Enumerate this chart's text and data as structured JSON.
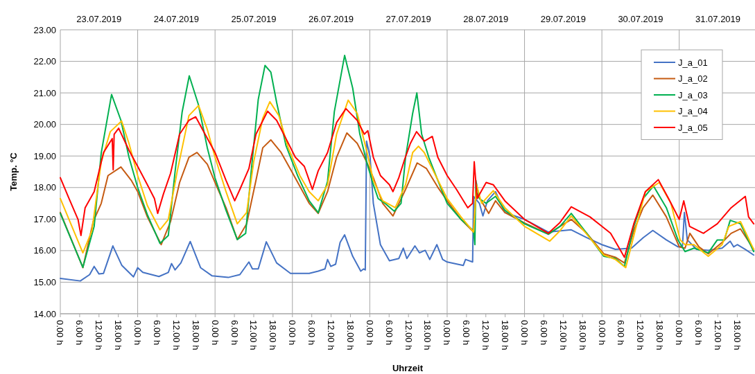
{
  "chart_data": {
    "type": "line",
    "xlabel": "Uhrzeit",
    "ylabel": "Temp. °C",
    "legend": "top right",
    "grid": "y",
    "line_style": "solid",
    "marker": "none",
    "xlim": [
      "2019-07-23T00:00",
      "2019-07-31T23:30"
    ],
    "ylim": [
      14,
      23
    ],
    "yticks": [
      {
        "value": 14,
        "label": "14.00"
      },
      {
        "value": 15,
        "label": "15.00"
      },
      {
        "value": 16,
        "label": "16.00"
      },
      {
        "value": 17,
        "label": "17.00"
      },
      {
        "value": 18,
        "label": "18.00"
      },
      {
        "value": 19,
        "label": "19.00"
      },
      {
        "value": 20,
        "label": "20.00"
      },
      {
        "value": 21,
        "label": "21.00"
      },
      {
        "value": 22,
        "label": "22.00"
      },
      {
        "value": 23,
        "label": "23.00"
      }
    ],
    "xticks": [
      {
        "value": "2019-07-23T00:00",
        "label": "0.00 h"
      },
      {
        "value": "2019-07-23T06:00",
        "label": "6.00 h"
      },
      {
        "value": "2019-07-23T12:00",
        "label": "12.00 h"
      },
      {
        "value": "2019-07-23T18:00",
        "label": "18.00 h"
      },
      {
        "value": "2019-07-24T00:00",
        "label": "0.00 h"
      },
      {
        "value": "2019-07-24T06:00",
        "label": "6.00 h"
      },
      {
        "value": "2019-07-24T12:00",
        "label": "12.00 h"
      },
      {
        "value": "2019-07-24T18:00",
        "label": "18.00 h"
      },
      {
        "value": "2019-07-25T00:00",
        "label": "0.00 h"
      },
      {
        "value": "2019-07-25T06:00",
        "label": "6.00 h"
      },
      {
        "value": "2019-07-25T12:00",
        "label": "12.00 h"
      },
      {
        "value": "2019-07-25T18:00",
        "label": "18.00 h"
      },
      {
        "value": "2019-07-26T00:00",
        "label": "0.00 h"
      },
      {
        "value": "2019-07-26T06:00",
        "label": "6.00 h"
      },
      {
        "value": "2019-07-26T12:00",
        "label": "12.00 h"
      },
      {
        "value": "2019-07-26T18:00",
        "label": "18.00 h"
      },
      {
        "value": "2019-07-27T00:00",
        "label": "0.00 h"
      },
      {
        "value": "2019-07-27T06:00",
        "label": "6.00 h"
      },
      {
        "value": "2019-07-27T12:00",
        "label": "12.00 h"
      },
      {
        "value": "2019-07-27T18:00",
        "label": "18.00 h"
      },
      {
        "value": "2019-07-28T00:00",
        "label": "0.00 h"
      },
      {
        "value": "2019-07-28T06:00",
        "label": "6.00 h"
      },
      {
        "value": "2019-07-28T12:00",
        "label": "12.00 h"
      },
      {
        "value": "2019-07-28T18:00",
        "label": "18.00 h"
      },
      {
        "value": "2019-07-29T00:00",
        "label": "0.00 h"
      },
      {
        "value": "2019-07-29T06:00",
        "label": "6.00 h"
      },
      {
        "value": "2019-07-29T12:00",
        "label": "12.00 h"
      },
      {
        "value": "2019-07-29T18:00",
        "label": "18.00 h"
      },
      {
        "value": "2019-07-30T00:00",
        "label": "0.00 h"
      },
      {
        "value": "2019-07-30T06:00",
        "label": "6.00 h"
      },
      {
        "value": "2019-07-30T12:00",
        "label": "12.00 h"
      },
      {
        "value": "2019-07-30T18:00",
        "label": "18.00 h"
      },
      {
        "value": "2019-07-31T00:00",
        "label": "0.00 h"
      },
      {
        "value": "2019-07-31T06:00",
        "label": "6.00 h"
      },
      {
        "value": "2019-07-31T12:00",
        "label": "12.00 h"
      },
      {
        "value": "2019-07-31T18:00",
        "label": "18.00 h"
      }
    ],
    "x2lim": [
      "2019-07-23T00:00",
      "2019-07-31T23:30"
    ],
    "x2ticks": [
      {
        "value": "2019-07-23T12:00",
        "label": "23.07.2019"
      },
      {
        "value": "2019-07-24T12:00",
        "label": "24.07.2019"
      },
      {
        "value": "2019-07-25T12:00",
        "label": "25.07.2019"
      },
      {
        "value": "2019-07-26T12:00",
        "label": "26.07.2019"
      },
      {
        "value": "2019-07-27T12:00",
        "label": "27.07.2019"
      },
      {
        "value": "2019-07-28T12:00",
        "label": "28.07.2019"
      },
      {
        "value": "2019-07-29T12:00",
        "label": "29.07.2019"
      },
      {
        "value": "2019-07-30T12:00",
        "label": "30.07.2019"
      },
      {
        "value": "2019-07-31T12:00",
        "label": "31.07.2019"
      }
    ],
    "ref_lines": [
      {
        "axis": "x",
        "value": "2019-07-24T00:00",
        "color": "#a6a6a6"
      },
      {
        "axis": "x",
        "value": "2019-07-25T00:00",
        "color": "#a6a6a6"
      },
      {
        "axis": "x",
        "value": "2019-07-26T00:00",
        "color": "#a6a6a6"
      },
      {
        "axis": "x",
        "value": "2019-07-27T00:00",
        "color": "#a6a6a6"
      },
      {
        "axis": "x",
        "value": "2019-07-28T00:00",
        "color": "#a6a6a6"
      },
      {
        "axis": "x",
        "value": "2019-07-29T00:00",
        "color": "#a6a6a6"
      },
      {
        "axis": "x",
        "value": "2019-07-30T00:00",
        "color": "#a6a6a6"
      },
      {
        "axis": "x",
        "value": "2019-07-31T00:00",
        "color": "#a6a6a6"
      }
    ],
    "series": [
      {
        "name": "J_a_01",
        "color": "#4472c4",
        "x": [
          "2019-07-23T00:00",
          "2019-07-23T06:12",
          "2019-07-23T09:06",
          "2019-07-23T10:30",
          "2019-07-23T12:00",
          "2019-07-23T13:24",
          "2019-07-23T16:18",
          "2019-07-23T19:06",
          "2019-07-23T22:42",
          "2019-07-24T00:00",
          "2019-07-24T01:36",
          "2019-07-24T06:36",
          "2019-07-24T09:30",
          "2019-07-24T10:30",
          "2019-07-24T11:36",
          "2019-07-24T13:24",
          "2019-07-24T16:18",
          "2019-07-24T19:30",
          "2019-07-24T23:06",
          "2019-07-25T04:06",
          "2019-07-25T07:42",
          "2019-07-25T10:30",
          "2019-07-25T11:36",
          "2019-07-25T13:24",
          "2019-07-25T15:54",
          "2019-07-25T19:06",
          "2019-07-25T23:24",
          "2019-07-26T05:12",
          "2019-07-26T08:00",
          "2019-07-26T10:06",
          "2019-07-26T10:54",
          "2019-07-26T11:54",
          "2019-07-26T13:24",
          "2019-07-26T14:48",
          "2019-07-26T16:12",
          "2019-07-26T18:42",
          "2019-07-26T21:12",
          "2019-07-26T22:06",
          "2019-07-26T22:36",
          "2019-07-26T23:00",
          "2019-07-27T00:06",
          "2019-07-27T01:06",
          "2019-07-27T03:18",
          "2019-07-27T06:06",
          "2019-07-27T09:00",
          "2019-07-27T10:24",
          "2019-07-27T11:30",
          "2019-07-27T14:00",
          "2019-07-27T15:24",
          "2019-07-27T17:12",
          "2019-07-27T18:36",
          "2019-07-27T20:48",
          "2019-07-27T22:36",
          "2019-07-28T00:00",
          "2019-07-28T05:00",
          "2019-07-28T05:42",
          "2019-07-28T07:54",
          "2019-07-28T08:12",
          "2019-07-28T10:00",
          "2019-07-28T11:06",
          "2019-07-28T12:30",
          "2019-07-28T15:00",
          "2019-07-28T17:54",
          "2019-07-29T00:00",
          "2019-07-29T07:24",
          "2019-07-29T14:30",
          "2019-07-29T19:18",
          "2019-07-30T00:00",
          "2019-07-30T04:12",
          "2019-07-30T09:12",
          "2019-07-30T12:48",
          "2019-07-30T15:48",
          "2019-07-30T20:00",
          "2019-07-30T23:36",
          "2019-07-31T01:00",
          "2019-07-31T01:36",
          "2019-07-31T02:30",
          "2019-07-31T05:24",
          "2019-07-31T09:00",
          "2019-07-31T13:18",
          "2019-07-31T15:48",
          "2019-07-31T16:54",
          "2019-07-31T18:00",
          "2019-07-31T20:30",
          "2019-07-31T23:06"
        ],
        "values": [
          15.12,
          15.04,
          15.24,
          15.5,
          15.26,
          15.28,
          16.15,
          15.53,
          15.17,
          15.46,
          15.31,
          15.18,
          15.31,
          15.59,
          15.39,
          15.61,
          16.29,
          15.46,
          15.2,
          15.15,
          15.24,
          15.64,
          15.42,
          15.42,
          16.28,
          15.61,
          15.28,
          15.28,
          15.35,
          15.42,
          15.72,
          15.5,
          15.57,
          16.26,
          16.5,
          15.82,
          15.35,
          15.42,
          15.39,
          19.47,
          18.96,
          17.5,
          16.19,
          15.68,
          15.75,
          16.08,
          15.75,
          16.15,
          15.93,
          16.01,
          15.72,
          16.19,
          15.72,
          15.64,
          15.53,
          15.72,
          15.64,
          17.72,
          17.5,
          17.1,
          17.58,
          17.87,
          17.21,
          16.99,
          16.59,
          16.66,
          16.41,
          16.19,
          16.04,
          16.08,
          16.41,
          16.64,
          16.34,
          16.12,
          16.15,
          17.21,
          16.34,
          16.04,
          16.01,
          16.08,
          16.3,
          16.12,
          16.19,
          16.04,
          15.86
        ]
      },
      {
        "name": "J_a_02",
        "color": "#c55a11",
        "x": [
          "2019-07-23T00:00",
          "2019-07-23T07:00",
          "2019-07-23T10:12",
          "2019-07-23T12:42",
          "2019-07-23T14:48",
          "2019-07-23T18:48",
          "2019-07-23T22:00",
          "2019-07-24T00:00",
          "2019-07-24T03:00",
          "2019-07-24T07:18",
          "2019-07-24T10:12",
          "2019-07-24T13:00",
          "2019-07-24T15:54",
          "2019-07-24T18:24",
          "2019-07-24T21:36",
          "2019-07-25T00:00",
          "2019-07-25T03:24",
          "2019-07-25T06:54",
          "2019-07-25T09:48",
          "2019-07-25T12:42",
          "2019-07-25T14:48",
          "2019-07-25T17:18",
          "2019-07-25T20:30",
          "2019-07-26T00:06",
          "2019-07-26T05:12",
          "2019-07-26T08:00",
          "2019-07-26T10:54",
          "2019-07-26T13:42",
          "2019-07-26T16:54",
          "2019-07-26T20:06",
          "2019-07-26T23:00",
          "2019-07-27T01:06",
          "2019-07-27T04:00",
          "2019-07-27T07:12",
          "2019-07-27T11:06",
          "2019-07-27T14:42",
          "2019-07-27T17:36",
          "2019-07-27T21:06",
          "2019-07-28T00:00",
          "2019-07-28T04:18",
          "2019-07-28T08:12",
          "2019-07-28T08:54",
          "2019-07-28T12:54",
          "2019-07-28T15:00",
          "2019-07-28T17:54",
          "2019-07-29T00:00",
          "2019-07-29T07:24",
          "2019-07-29T11:00",
          "2019-07-29T14:30",
          "2019-07-29T19:18",
          "2019-07-30T00:36",
          "2019-07-30T04:12",
          "2019-07-30T07:00",
          "2019-07-30T09:54",
          "2019-07-30T12:48",
          "2019-07-30T15:48",
          "2019-07-30T20:00",
          "2019-07-31T00:00",
          "2019-07-31T01:48",
          "2019-07-31T03:18",
          "2019-07-31T06:06",
          "2019-07-31T09:00",
          "2019-07-31T13:18",
          "2019-07-31T16:06",
          "2019-07-31T19:00",
          "2019-07-31T23:06"
        ],
        "values": [
          17.21,
          15.46,
          16.92,
          17.5,
          18.38,
          18.65,
          18.23,
          17.87,
          17.07,
          16.19,
          16.92,
          18.16,
          18.96,
          19.11,
          18.74,
          18.16,
          17.36,
          16.35,
          16.85,
          18.23,
          19.26,
          19.51,
          19.11,
          18.45,
          17.5,
          17.18,
          17.87,
          18.96,
          19.73,
          19.4,
          18.82,
          18.31,
          17.5,
          17.1,
          17.94,
          18.78,
          18.6,
          18.01,
          17.58,
          16.99,
          16.59,
          17.87,
          17.18,
          17.58,
          17.21,
          16.88,
          16.52,
          16.77,
          16.99,
          16.55,
          15.9,
          15.79,
          15.61,
          16.63,
          17.36,
          17.76,
          17.07,
          16.12,
          16.08,
          16.55,
          16.12,
          15.9,
          16.26,
          16.55,
          16.69,
          16.04
        ]
      },
      {
        "name": "J_a_03",
        "color": "#00b050",
        "x": [
          "2019-07-23T00:00",
          "2019-07-23T07:00",
          "2019-07-23T10:30",
          "2019-07-23T12:42",
          "2019-07-23T15:54",
          "2019-07-23T18:48",
          "2019-07-23T21:18",
          "2019-07-24T00:00",
          "2019-07-24T03:00",
          "2019-07-24T06:54",
          "2019-07-24T09:30",
          "2019-07-24T11:36",
          "2019-07-24T13:48",
          "2019-07-24T16:00",
          "2019-07-24T18:48",
          "2019-07-24T21:36",
          "2019-07-25T00:00",
          "2019-07-25T03:24",
          "2019-07-25T06:54",
          "2019-07-25T09:30",
          "2019-07-25T11:12",
          "2019-07-25T13:24",
          "2019-07-25T15:30",
          "2019-07-25T17:18",
          "2019-07-25T19:06",
          "2019-07-25T22:00",
          "2019-07-26T01:36",
          "2019-07-26T05:12",
          "2019-07-26T08:00",
          "2019-07-26T10:54",
          "2019-07-26T13:00",
          "2019-07-26T16:12",
          "2019-07-26T18:42",
          "2019-07-26T20:54",
          "2019-07-26T23:00",
          "2019-07-27T01:06",
          "2019-07-27T02:36",
          "2019-07-27T04:42",
          "2019-07-27T07:36",
          "2019-07-27T09:42",
          "2019-07-27T11:06",
          "2019-07-27T13:18",
          "2019-07-27T14:36",
          "2019-07-27T16:06",
          "2019-07-27T18:18",
          "2019-07-27T21:06",
          "2019-07-28T00:00",
          "2019-07-28T04:18",
          "2019-07-28T08:12",
          "2019-07-28T08:36",
          "2019-07-28T08:54",
          "2019-07-28T10:00",
          "2019-07-28T12:06",
          "2019-07-28T15:00",
          "2019-07-28T17:54",
          "2019-07-29T00:00",
          "2019-07-29T07:24",
          "2019-07-29T11:00",
          "2019-07-29T14:30",
          "2019-07-29T19:18",
          "2019-07-30T00:36",
          "2019-07-30T04:12",
          "2019-07-30T07:00",
          "2019-07-30T09:54",
          "2019-07-30T12:48",
          "2019-07-30T16:00",
          "2019-07-30T20:00",
          "2019-07-30T23:36",
          "2019-07-31T01:48",
          "2019-07-31T04:36",
          "2019-07-31T09:00",
          "2019-07-31T11:48",
          "2019-07-31T14:00",
          "2019-07-31T15:48",
          "2019-07-31T19:00",
          "2019-07-31T23:06"
        ],
        "values": [
          17.18,
          15.47,
          16.77,
          19.1,
          20.95,
          20.13,
          18.96,
          18,
          17.14,
          16.23,
          16.48,
          18.5,
          20.4,
          21.54,
          20.64,
          19.26,
          18.3,
          17.28,
          16.35,
          16.55,
          18.5,
          20.79,
          21.87,
          21.66,
          20.7,
          19.33,
          18.38,
          17.58,
          17.2,
          18.2,
          20.4,
          22.19,
          21.15,
          19.7,
          18.82,
          18.09,
          17.65,
          17.5,
          17.25,
          17.5,
          18.96,
          20.35,
          21,
          19.69,
          18.96,
          18.23,
          17.5,
          16.99,
          16.63,
          16.19,
          18.23,
          17.65,
          17.5,
          17.72,
          17.28,
          16.85,
          16.52,
          16.77,
          17.18,
          16.55,
          15.82,
          15.75,
          15.5,
          16.77,
          17.65,
          18.05,
          17.36,
          16.34,
          15.97,
          16.08,
          15.93,
          16.34,
          16.34,
          16.96,
          16.85,
          15.97
        ]
      },
      {
        "name": "J_a_04",
        "color": "#ffc000",
        "x": [
          "2019-07-23T00:00",
          "2019-07-23T07:00",
          "2019-07-23T09:48",
          "2019-07-23T12:42",
          "2019-07-23T15:30",
          "2019-07-23T19:00",
          "2019-07-23T21:18",
          "2019-07-24T00:00",
          "2019-07-24T03:00",
          "2019-07-24T06:54",
          "2019-07-24T09:30",
          "2019-07-24T12:18",
          "2019-07-24T15:54",
          "2019-07-24T18:54",
          "2019-07-24T21:36",
          "2019-07-25T00:00",
          "2019-07-25T03:24",
          "2019-07-25T06:54",
          "2019-07-25T09:48",
          "2019-07-25T12:00",
          "2019-07-25T14:48",
          "2019-07-25T17:00",
          "2019-07-25T19:48",
          "2019-07-25T22:42",
          "2019-07-26T02:18",
          "2019-07-26T05:12",
          "2019-07-26T08:00",
          "2019-07-26T10:54",
          "2019-07-26T13:42",
          "2019-07-26T17:18",
          "2019-07-26T20:06",
          "2019-07-26T23:00",
          "2019-07-27T01:06",
          "2019-07-27T04:00",
          "2019-07-27T07:54",
          "2019-07-27T11:06",
          "2019-07-27T13:18",
          "2019-07-27T15:06",
          "2019-07-27T16:54",
          "2019-07-27T19:42",
          "2019-07-28T00:00",
          "2019-07-28T04:18",
          "2019-07-28T08:12",
          "2019-07-28T09:06",
          "2019-07-28T10:42",
          "2019-07-28T14:18",
          "2019-07-28T17:54",
          "2019-07-29T00:00",
          "2019-07-29T07:48",
          "2019-07-29T11:00",
          "2019-07-29T14:30",
          "2019-07-29T19:18",
          "2019-07-30T00:36",
          "2019-07-30T04:12",
          "2019-07-30T07:24",
          "2019-07-30T10:18",
          "2019-07-30T13:30",
          "2019-07-30T17:48",
          "2019-07-30T21:24",
          "2019-07-31T00:18",
          "2019-07-31T01:48",
          "2019-07-31T04:36",
          "2019-07-31T09:00",
          "2019-07-31T13:18",
          "2019-07-31T15:24",
          "2019-07-31T19:00",
          "2019-07-31T23:06"
        ],
        "values": [
          17.65,
          15.93,
          16.63,
          18.82,
          19.77,
          20.11,
          19.4,
          18.38,
          17.43,
          16.66,
          16.99,
          18.53,
          20.28,
          20.6,
          19.84,
          18.96,
          17.87,
          16.85,
          17.21,
          18.82,
          20.2,
          20.72,
          20.28,
          19.26,
          18.38,
          17.87,
          17.58,
          18.09,
          19.69,
          20.77,
          20.35,
          19.18,
          18.23,
          17.58,
          17.36,
          18.09,
          19.11,
          19.31,
          19.11,
          18.53,
          17.65,
          17.07,
          16.59,
          18.09,
          17.5,
          17.9,
          17.36,
          16.77,
          16.3,
          16.63,
          17.1,
          16.52,
          15.86,
          15.72,
          15.46,
          16.63,
          17.87,
          18.16,
          17.5,
          16.34,
          16.19,
          16.19,
          15.82,
          16.19,
          16.77,
          16.92,
          16.04
        ]
      },
      {
        "name": "J_a_05",
        "color": "#ff0000",
        "x": [
          "2019-07-23T00:00",
          "2019-07-23T02:42",
          "2019-07-23T05:30",
          "2019-07-23T06:24",
          "2019-07-23T07:42",
          "2019-07-23T10:30",
          "2019-07-23T13:24",
          "2019-07-23T16:06",
          "2019-07-23T16:24",
          "2019-07-23T16:42",
          "2019-07-23T18:06",
          "2019-07-23T21:18",
          "2019-07-24T00:00",
          "2019-07-24T03:00",
          "2019-07-24T05:12",
          "2019-07-24T06:12",
          "2019-07-24T08:00",
          "2019-07-24T10:12",
          "2019-07-24T13:00",
          "2019-07-24T15:54",
          "2019-07-24T18:00",
          "2019-07-24T20:54",
          "2019-07-25T00:00",
          "2019-07-25T03:24",
          "2019-07-25T06:06",
          "2019-07-25T07:42",
          "2019-07-25T10:30",
          "2019-07-25T12:42",
          "2019-07-25T16:18",
          "2019-07-25T19:06",
          "2019-07-25T22:00",
          "2019-07-26T00:54",
          "2019-07-26T03:42",
          "2019-07-26T06:12",
          "2019-07-26T08:00",
          "2019-07-26T10:54",
          "2019-07-26T13:42",
          "2019-07-26T16:36",
          "2019-07-26T20:06",
          "2019-07-26T22:18",
          "2019-07-26T23:24",
          "2019-07-27T01:06",
          "2019-07-27T03:18",
          "2019-07-27T06:06",
          "2019-07-27T07:12",
          "2019-07-27T09:00",
          "2019-07-27T10:48",
          "2019-07-27T12:36",
          "2019-07-27T14:30",
          "2019-07-27T16:54",
          "2019-07-27T19:24",
          "2019-07-27T21:06",
          "2019-07-28T00:00",
          "2019-07-28T02:54",
          "2019-07-28T06:24",
          "2019-07-28T07:54",
          "2019-07-28T08:24",
          "2019-07-28T09:18",
          "2019-07-28T12:06",
          "2019-07-28T14:18",
          "2019-07-28T17:54",
          "2019-07-29T00:00",
          "2019-07-29T07:24",
          "2019-07-29T10:54",
          "2019-07-29T14:30",
          "2019-07-29T20:18",
          "2019-07-30T00:00",
          "2019-07-30T02:42",
          "2019-07-30T05:36",
          "2019-07-30T07:00",
          "2019-07-30T09:54",
          "2019-07-30T13:30",
          "2019-07-30T17:30",
          "2019-07-30T20:42",
          "2019-07-31T00:00",
          "2019-07-31T01:24",
          "2019-07-31T03:12",
          "2019-07-31T07:30",
          "2019-07-31T11:48",
          "2019-07-31T16:06",
          "2019-07-31T20:30",
          "2019-07-31T21:30",
          "2019-07-31T23:06"
        ],
        "values": [
          18.31,
          17.65,
          16.99,
          16.48,
          17.36,
          17.87,
          19.11,
          19.55,
          18.56,
          19.69,
          19.88,
          19.18,
          18.67,
          18.09,
          17.65,
          17.18,
          17.8,
          18.45,
          19.69,
          20.13,
          20.24,
          19.69,
          19.11,
          18.23,
          17.58,
          17.94,
          18.6,
          19.69,
          20.42,
          20.13,
          19.55,
          18.96,
          18.67,
          17.94,
          18.53,
          19.11,
          20.06,
          20.5,
          20.13,
          19.69,
          19.8,
          18.96,
          18.38,
          18.09,
          17.87,
          18.31,
          18.89,
          19.4,
          19.77,
          19.47,
          19.62,
          18.96,
          18.38,
          17.94,
          17.36,
          17.5,
          18.82,
          17.65,
          18.16,
          18.09,
          17.58,
          16.99,
          16.55,
          16.88,
          17.39,
          17.07,
          16.77,
          16.55,
          16.04,
          15.79,
          16.85,
          17.87,
          18.25,
          17.65,
          16.99,
          17.58,
          16.77,
          16.55,
          16.85,
          17.36,
          17.72,
          17.07,
          16.85
        ]
      }
    ]
  }
}
